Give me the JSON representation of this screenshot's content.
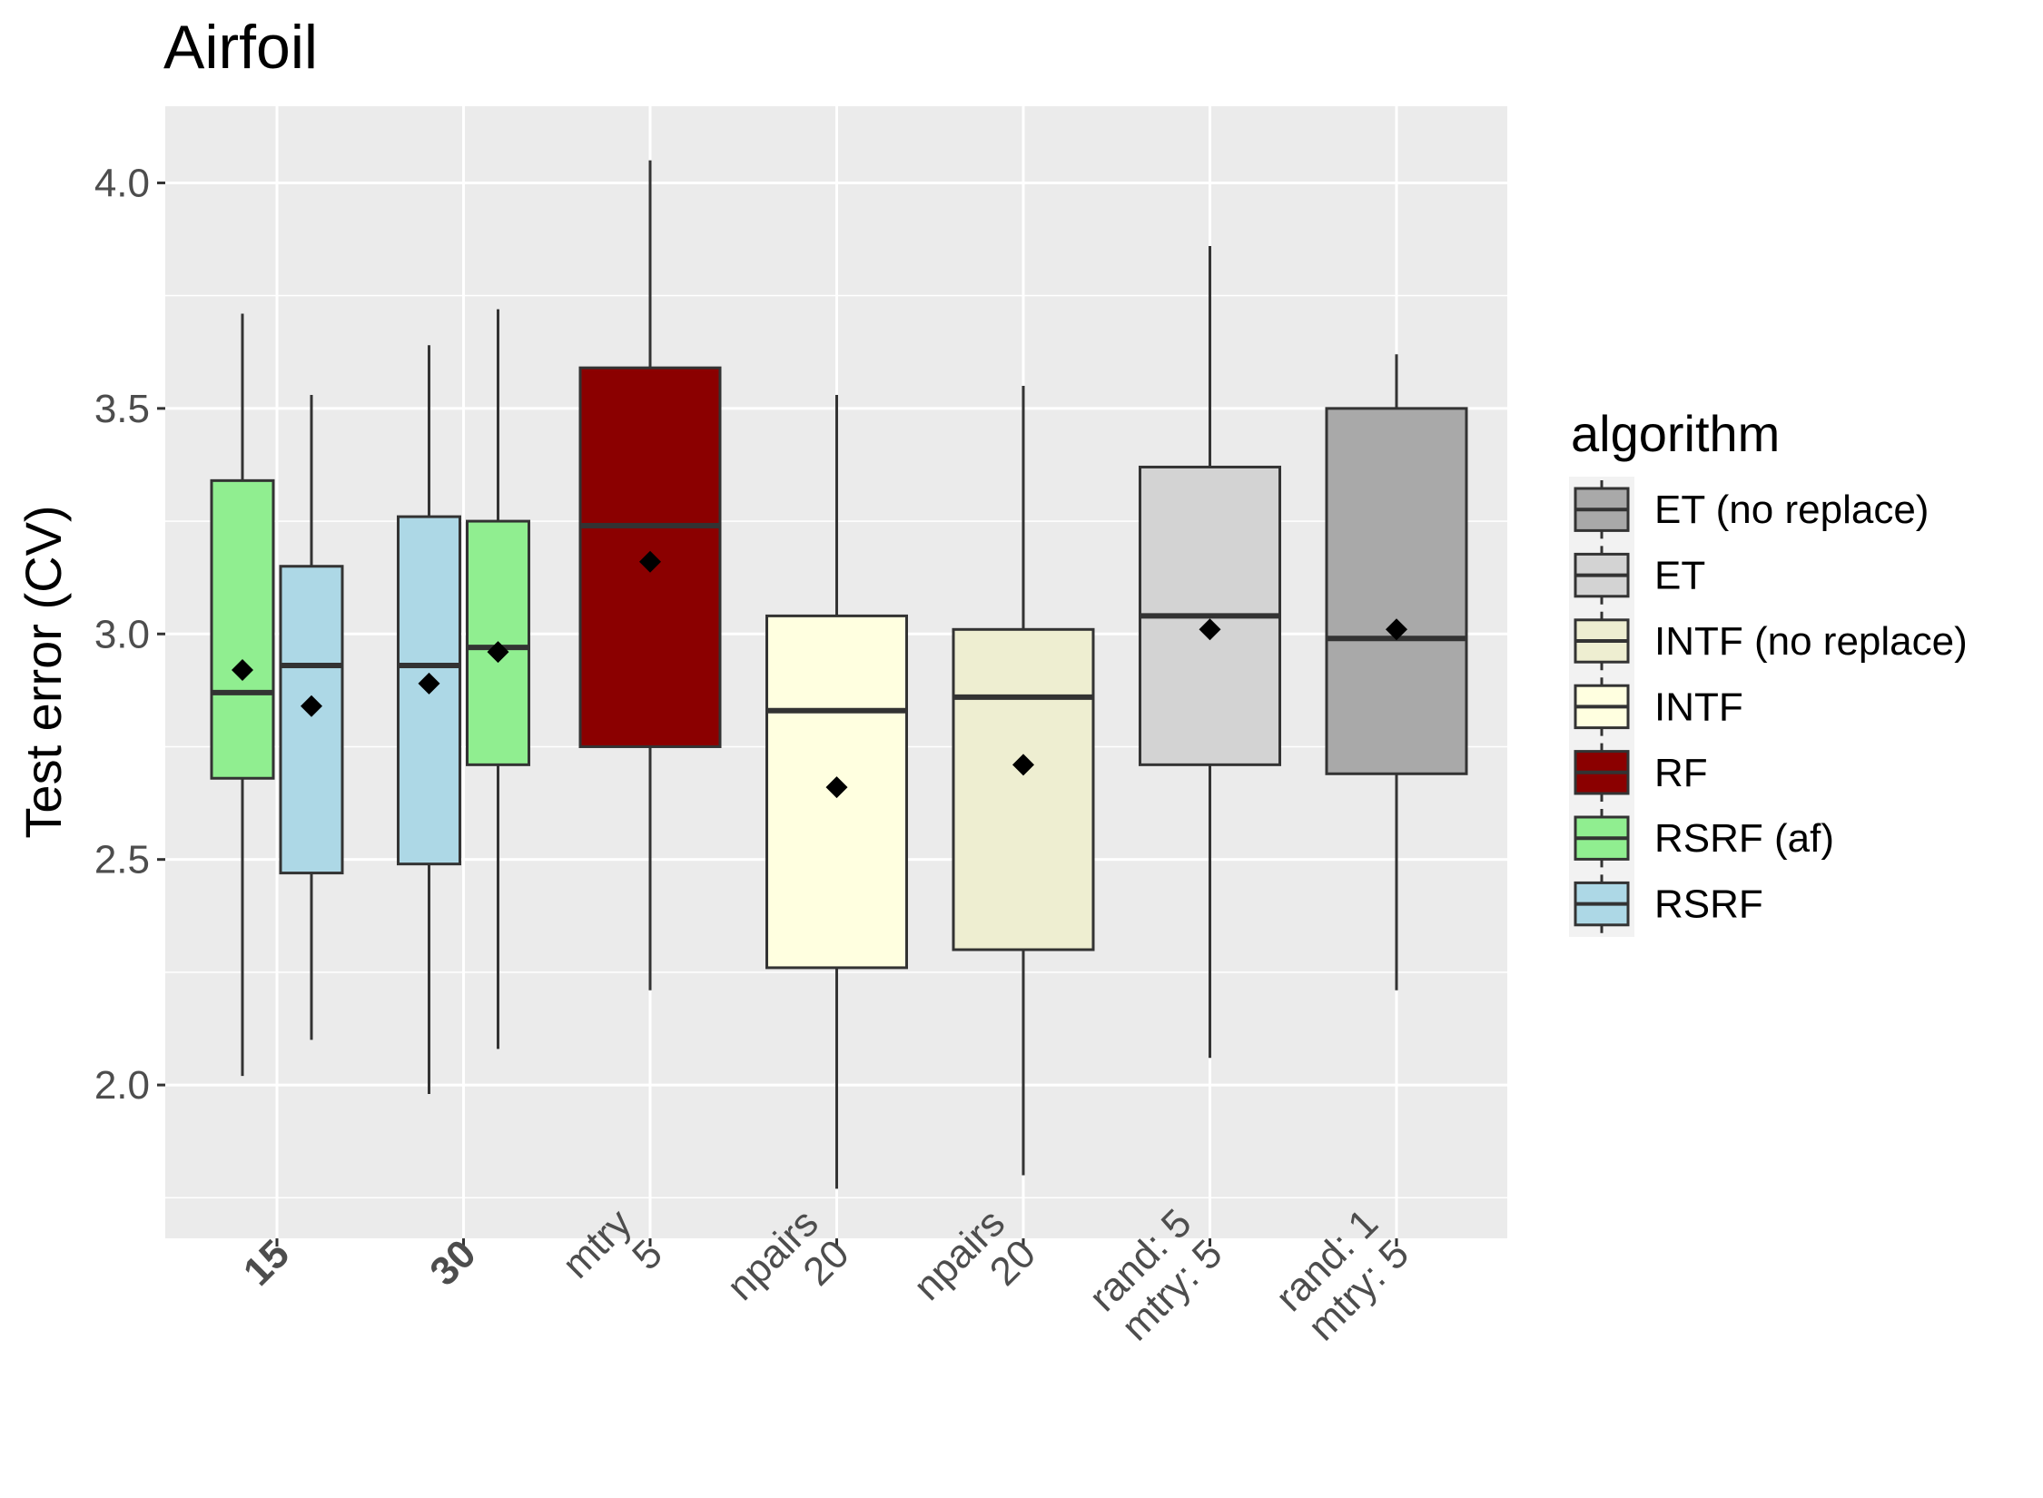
{
  "chart_data": {
    "type": "boxplot",
    "title": "Airfoil",
    "xlabel": "",
    "ylabel": "Test error (CV)",
    "ylim": [
      1.66,
      4.17
    ],
    "yticks": [
      2.0,
      2.5,
      3.0,
      3.5,
      4.0
    ],
    "ytick_labels": [
      "2.0",
      "2.5",
      "3.0",
      "3.5",
      "4.0"
    ],
    "grid": true,
    "legend_position": "right",
    "legend_title": "algorithm",
    "categories": [
      {
        "lines": [
          "15"
        ],
        "bold": true
      },
      {
        "lines": [
          "30"
        ],
        "bold": true
      },
      {
        "lines": [
          "mtry",
          "5"
        ],
        "bold": false
      },
      {
        "lines": [
          "npairs",
          "20"
        ],
        "bold": false
      },
      {
        "lines": [
          "npairs",
          "20"
        ],
        "bold": false
      },
      {
        "lines": [
          "rand: 5",
          "mtry: 5"
        ],
        "bold": false
      },
      {
        "lines": [
          "rand: 1",
          "mtry: 5"
        ],
        "bold": false
      }
    ],
    "series": [
      {
        "name": "ET (no replace)",
        "color": "#a9a9a9"
      },
      {
        "name": "ET",
        "color": "#d3d3d3"
      },
      {
        "name": "INTF (no replace)",
        "color": "#eeeed1"
      },
      {
        "name": "INTF",
        "color": "#ffffe0"
      },
      {
        "name": "RF",
        "color": "#8b0000"
      },
      {
        "name": "RSRF (af)",
        "color": "#90ee90"
      },
      {
        "name": "RSRF",
        "color": "#add8e6"
      }
    ],
    "boxes": [
      {
        "category": 0,
        "series": "RSRF (af)",
        "slot": 0,
        "slots": 2,
        "min": 2.02,
        "q1": 2.68,
        "median": 2.87,
        "q3": 3.34,
        "max": 3.71,
        "mean": 2.92
      },
      {
        "category": 0,
        "series": "RSRF",
        "slot": 1,
        "slots": 2,
        "min": 2.1,
        "q1": 2.47,
        "median": 2.93,
        "q3": 3.15,
        "max": 3.53,
        "mean": 2.84
      },
      {
        "category": 1,
        "series": "RSRF",
        "slot": 0,
        "slots": 2,
        "min": 1.98,
        "q1": 2.49,
        "median": 2.93,
        "q3": 3.26,
        "max": 3.64,
        "mean": 2.89
      },
      {
        "category": 1,
        "series": "RSRF (af)",
        "slot": 1,
        "slots": 2,
        "min": 2.08,
        "q1": 2.71,
        "median": 2.97,
        "q3": 3.25,
        "max": 3.72,
        "mean": 2.96
      },
      {
        "category": 2,
        "series": "RF",
        "slot": 0,
        "slots": 1,
        "min": 2.21,
        "q1": 2.75,
        "median": 3.24,
        "q3": 3.59,
        "max": 4.05,
        "mean": 3.16
      },
      {
        "category": 3,
        "series": "INTF",
        "slot": 0,
        "slots": 1,
        "min": 1.77,
        "q1": 2.26,
        "median": 2.83,
        "q3": 3.04,
        "max": 3.53,
        "mean": 2.66
      },
      {
        "category": 4,
        "series": "INTF (no replace)",
        "slot": 0,
        "slots": 1,
        "min": 1.8,
        "q1": 2.3,
        "median": 2.86,
        "q3": 3.01,
        "max": 3.55,
        "mean": 2.71
      },
      {
        "category": 5,
        "series": "ET",
        "slot": 0,
        "slots": 1,
        "min": 2.06,
        "q1": 2.71,
        "median": 3.04,
        "q3": 3.37,
        "max": 3.86,
        "mean": 3.01
      },
      {
        "category": 6,
        "series": "ET (no replace)",
        "slot": 0,
        "slots": 1,
        "min": 2.21,
        "q1": 2.69,
        "median": 2.99,
        "q3": 3.5,
        "max": 3.62,
        "mean": 3.01
      }
    ]
  }
}
